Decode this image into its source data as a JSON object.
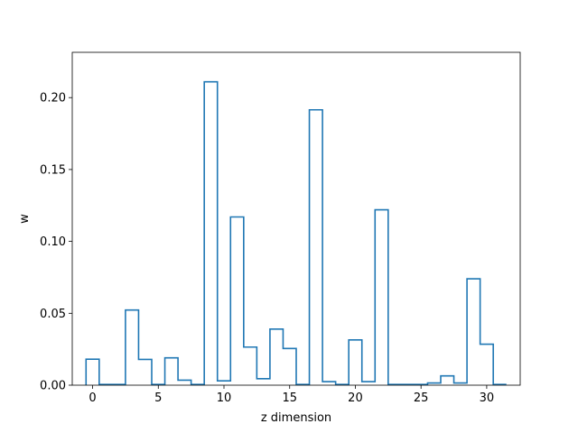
{
  "chart_data": {
    "type": "line",
    "style": "step",
    "xlabel": "z dimension",
    "ylabel": "w",
    "xlim": [
      -1.55,
      32.55
    ],
    "ylim": [
      0,
      0.2315
    ],
    "grid": false,
    "color": "#1f77b4",
    "x_ticks": [
      0,
      5,
      10,
      15,
      20,
      25,
      30
    ],
    "x_tick_labels": [
      "0",
      "5",
      "10",
      "15",
      "20",
      "25",
      "30"
    ],
    "y_ticks": [
      0.0,
      0.05,
      0.1,
      0.15,
      0.2
    ],
    "y_tick_labels": [
      "0.00",
      "0.05",
      "0.10",
      "0.15",
      "0.20"
    ],
    "x": [
      0,
      1,
      2,
      3,
      4,
      5,
      6,
      7,
      8,
      9,
      10,
      11,
      12,
      13,
      14,
      15,
      16,
      17,
      18,
      19,
      20,
      21,
      22,
      23,
      24,
      25,
      26,
      27,
      28,
      29,
      30,
      31
    ],
    "values": [
      0.0181,
      0.0005,
      0.0005,
      0.0523,
      0.0179,
      0.0005,
      0.019,
      0.0035,
      0.0005,
      0.211,
      0.003,
      0.117,
      0.0265,
      0.0045,
      0.039,
      0.0255,
      0.0005,
      0.1915,
      0.0025,
      0.0005,
      0.0315,
      0.0025,
      0.122,
      0.0005,
      0.0005,
      0.0005,
      0.0015,
      0.0065,
      0.0015,
      0.074,
      0.0285,
      0.0005
    ]
  }
}
